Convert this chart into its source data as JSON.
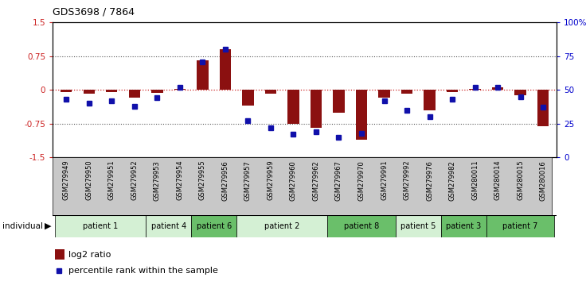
{
  "title": "GDS3698 / 7864",
  "samples": [
    "GSM279949",
    "GSM279950",
    "GSM279951",
    "GSM279952",
    "GSM279953",
    "GSM279954",
    "GSM279955",
    "GSM279956",
    "GSM279957",
    "GSM279959",
    "GSM279960",
    "GSM279962",
    "GSM279967",
    "GSM279970",
    "GSM279991",
    "GSM279992",
    "GSM279976",
    "GSM279982",
    "GSM280011",
    "GSM280014",
    "GSM280015",
    "GSM280016"
  ],
  "log2_ratio": [
    -0.05,
    -0.08,
    -0.05,
    -0.18,
    -0.06,
    0.03,
    0.65,
    0.9,
    -0.35,
    -0.08,
    -0.75,
    -0.85,
    -0.5,
    -1.1,
    -0.18,
    -0.08,
    -0.45,
    -0.05,
    0.03,
    0.05,
    -0.12,
    -0.8
  ],
  "percentile": [
    43,
    40,
    42,
    38,
    44,
    52,
    71,
    80,
    27,
    22,
    17,
    19,
    15,
    18,
    42,
    35,
    30,
    43,
    52,
    52,
    45,
    37
  ],
  "patients": [
    {
      "label": "patient 1",
      "start": 0,
      "end": 4,
      "color": "#d4f0d4"
    },
    {
      "label": "patient 4",
      "start": 4,
      "end": 6,
      "color": "#d4f0d4"
    },
    {
      "label": "patient 6",
      "start": 6,
      "end": 8,
      "color": "#6abf6a"
    },
    {
      "label": "patient 2",
      "start": 8,
      "end": 12,
      "color": "#d4f0d4"
    },
    {
      "label": "patient 8",
      "start": 12,
      "end": 15,
      "color": "#6abf6a"
    },
    {
      "label": "patient 5",
      "start": 15,
      "end": 17,
      "color": "#d4f0d4"
    },
    {
      "label": "patient 3",
      "start": 17,
      "end": 19,
      "color": "#6abf6a"
    },
    {
      "label": "patient 7",
      "start": 19,
      "end": 22,
      "color": "#6abf6a"
    }
  ],
  "bar_color": "#8B1010",
  "dot_color": "#1010AA",
  "hline0_color": "#cc2222",
  "hline_color": "#555555",
  "ylim": [
    -1.5,
    1.5
  ],
  "yticks_left": [
    -1.5,
    -0.75,
    0,
    0.75,
    1.5
  ],
  "ytick_labels_left": [
    "-1.5",
    "-0.75",
    "0",
    "0.75",
    "1.5"
  ],
  "yticks_right": [
    0,
    25,
    50,
    75,
    100
  ],
  "ytick_labels_right": [
    "0",
    "25",
    "50",
    "75",
    "100%"
  ]
}
